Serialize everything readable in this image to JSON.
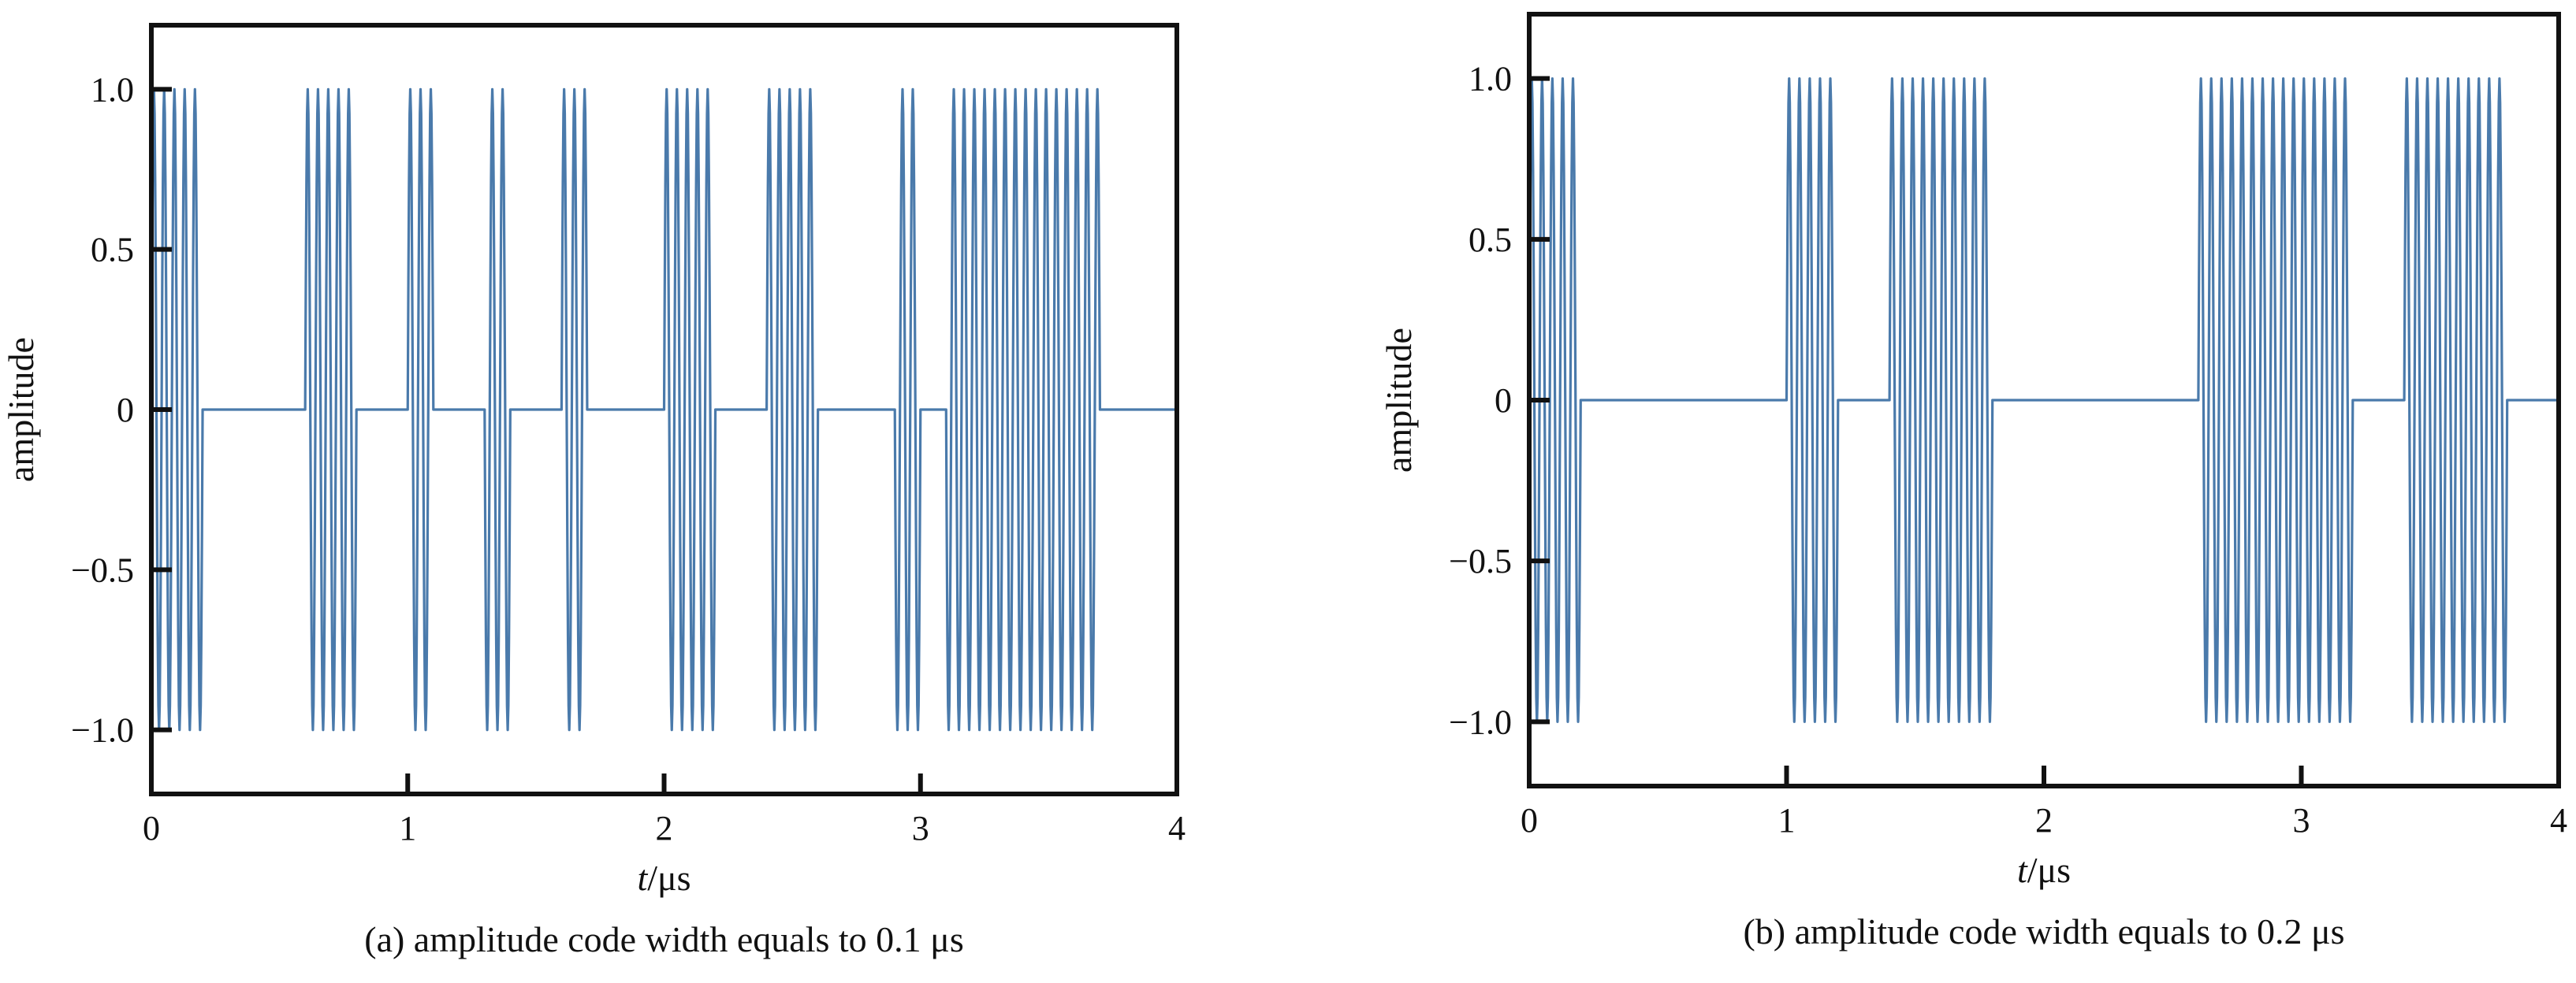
{
  "colors": {
    "signal": "#4a7aab",
    "axis": "#111111"
  },
  "chart_data": [
    {
      "type": "line",
      "caption": "(a) amplitude code width equals to 0.1 μs",
      "xlabel_italic": "t",
      "xlabel_unit": "/μs",
      "ylabel": "amplitude",
      "xlim": [
        0,
        4
      ],
      "ylim": [
        -1.2,
        1.2
      ],
      "xticks": [
        "0",
        "1",
        "2",
        "3",
        "4"
      ],
      "yticks": [
        "1.0",
        "0.5",
        "0",
        "−0.5",
        "−1.0"
      ],
      "ytick_values": [
        1.0,
        0.5,
        0,
        -0.5,
        -1.0
      ],
      "grid": false,
      "signal": {
        "description_of_segments": "carrier bursts of 0.1 μs code slots; amplitude 1 during 'on' slots, 0 otherwise",
        "carrier_frequency_MHz": 25,
        "amplitude_on": 1.0,
        "on_intervals_us": [
          [
            0.0,
            0.2
          ],
          [
            0.6,
            0.8
          ],
          [
            1.0,
            1.1
          ],
          [
            1.3,
            1.4
          ],
          [
            1.6,
            1.7
          ],
          [
            2.0,
            2.2
          ],
          [
            2.4,
            2.6
          ],
          [
            2.9,
            3.0
          ],
          [
            3.1,
            3.7
          ]
        ]
      }
    },
    {
      "type": "line",
      "caption": "(b) amplitude code width equals to 0.2 μs",
      "xlabel_italic": "t",
      "xlabel_unit": "/μs",
      "ylabel": "amplitude",
      "xlim": [
        0,
        4
      ],
      "ylim": [
        -1.2,
        1.2
      ],
      "xticks": [
        "0",
        "1",
        "2",
        "3",
        "4"
      ],
      "yticks": [
        "1.0",
        "0.5",
        "0",
        "−0.5",
        "−1.0"
      ],
      "ytick_values": [
        1.0,
        0.5,
        0,
        -0.5,
        -1.0
      ],
      "grid": false,
      "signal": {
        "description_of_segments": "carrier bursts of 0.2 μs code slots; amplitude 1 during 'on' slots, 0 otherwise",
        "carrier_frequency_MHz": 25,
        "amplitude_on": 1.0,
        "on_intervals_us": [
          [
            0.0,
            0.2
          ],
          [
            1.0,
            1.2
          ],
          [
            1.4,
            1.8
          ],
          [
            2.6,
            3.2
          ],
          [
            3.4,
            3.8
          ]
        ]
      }
    }
  ]
}
